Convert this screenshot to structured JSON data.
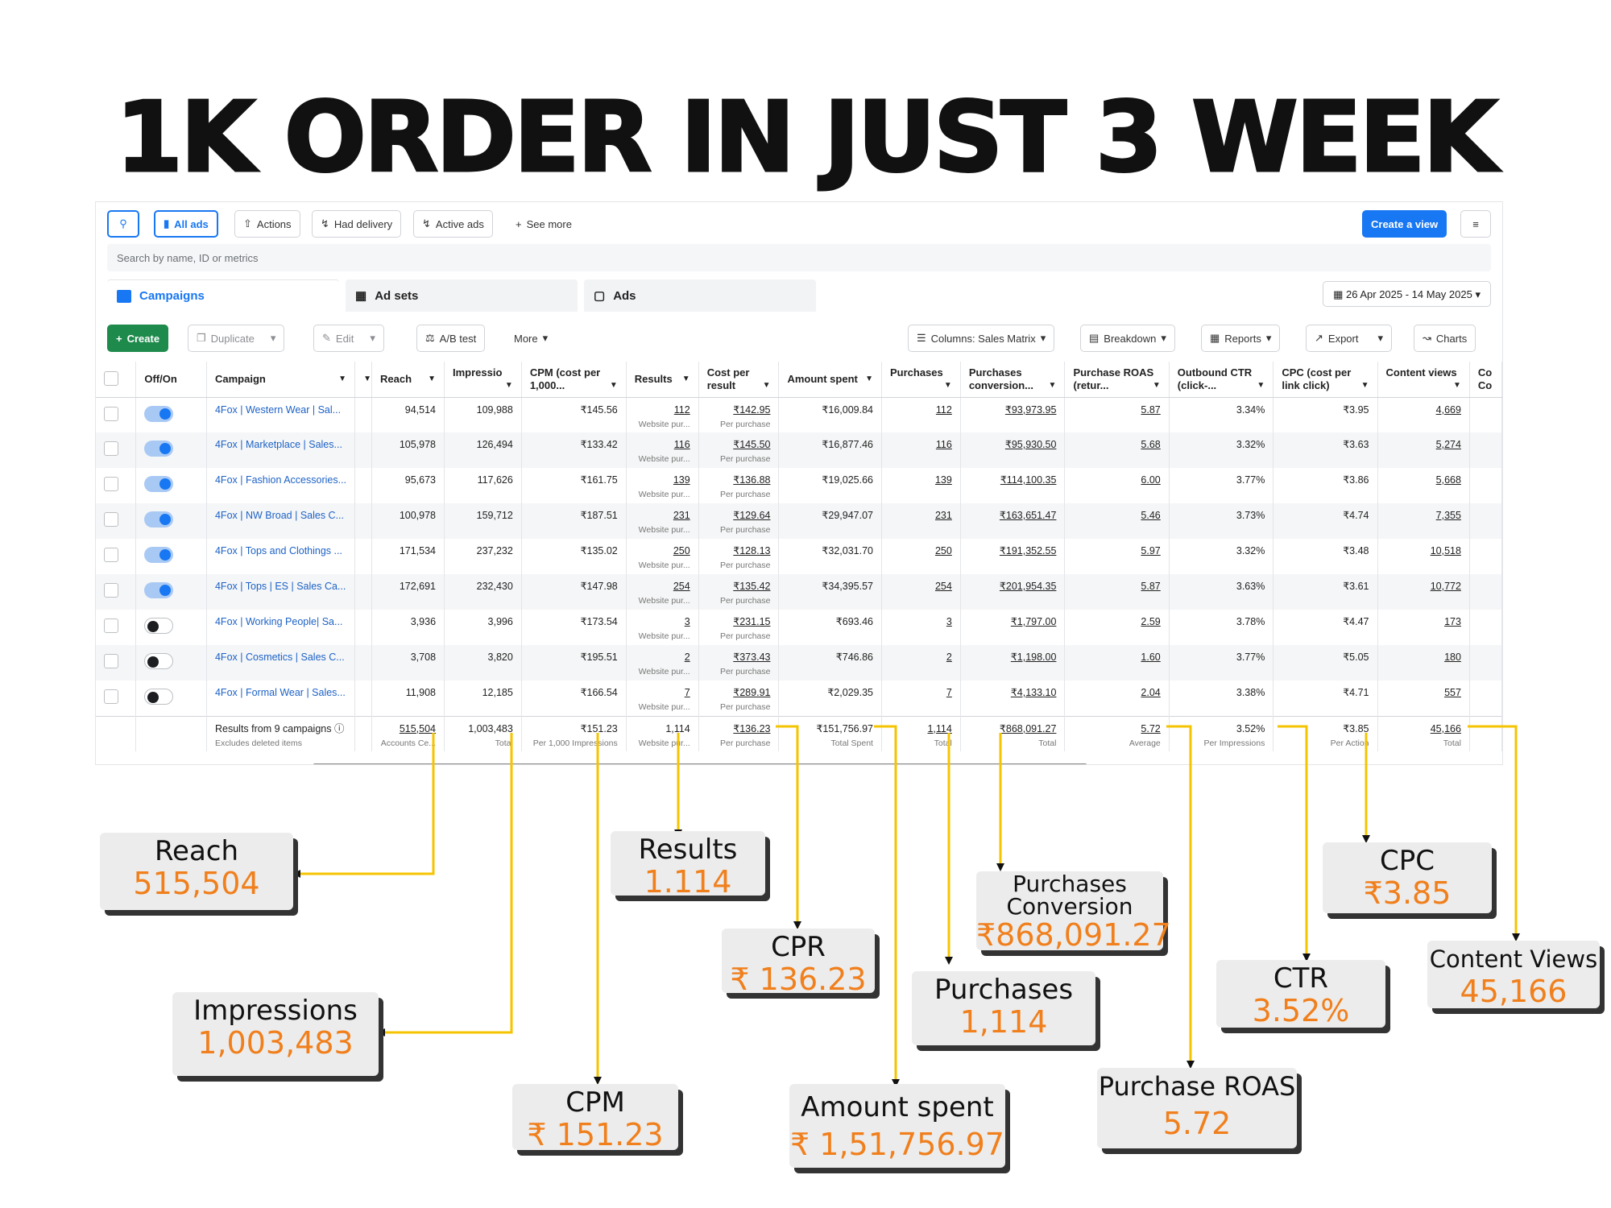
{
  "headline": "1K ORDER IN JUST 3 WEEK",
  "toolbar": {
    "all_ads": "All ads",
    "actions": "Actions",
    "had_delivery": "Had delivery",
    "active_ads": "Active ads",
    "see_more": "See more",
    "create_view": "Create a view"
  },
  "search": {
    "placeholder": "Search by name, ID or metrics"
  },
  "tabs": {
    "campaigns": "Campaigns",
    "ad_sets": "Ad sets",
    "ads": "Ads"
  },
  "date_range": "26 Apr 2025 - 14 May 2025",
  "actionbar": {
    "create": "Create",
    "duplicate": "Duplicate",
    "edit": "Edit",
    "ab_test": "A/B test",
    "more": "More",
    "columns": "Columns: Sales Matrix",
    "breakdown": "Breakdown",
    "reports": "Reports",
    "export": "Export",
    "charts": "Charts"
  },
  "columns": {
    "offon": "Off/On",
    "campaign": "Campaign",
    "reach": "Reach",
    "impressions": "Impressio",
    "cpm": "CPM (cost per 1,000...",
    "results": "Results",
    "cost_per_result": "Cost per result",
    "amount_spent": "Amount spent",
    "purchases": "Purchases",
    "purchases_conversion": "Purchases conversion...",
    "purchase_roas": "Purchase ROAS (retur...",
    "outbound_ctr": "Outbound CTR (click-...",
    "cpc": "CPC (cost per link click)",
    "content_views": "Content views",
    "next": "Co Co"
  },
  "rows": [
    {
      "on": true,
      "name": "4Fox | Western Wear | Sal...",
      "reach": "94,514",
      "impressions": "109,988",
      "cpm": "₹145.56",
      "results": "112",
      "results_sub": "Website pur...",
      "cpr": "₹142.95",
      "cpr_sub": "Per purchase",
      "spent": "₹16,009.84",
      "purchases": "112",
      "conv": "₹93,973.95",
      "roas": "5.87",
      "ctr": "3.34%",
      "cpc": "₹3.95",
      "views": "4,669"
    },
    {
      "on": true,
      "name": "4Fox | Marketplace | Sales...",
      "reach": "105,978",
      "impressions": "126,494",
      "cpm": "₹133.42",
      "results": "116",
      "results_sub": "Website pur...",
      "cpr": "₹145.50",
      "cpr_sub": "Per purchase",
      "spent": "₹16,877.46",
      "purchases": "116",
      "conv": "₹95,930.50",
      "roas": "5.68",
      "ctr": "3.32%",
      "cpc": "₹3.63",
      "views": "5,274"
    },
    {
      "on": true,
      "name": "4Fox | Fashion Accessories...",
      "reach": "95,673",
      "impressions": "117,626",
      "cpm": "₹161.75",
      "results": "139",
      "results_sub": "Website pur...",
      "cpr": "₹136.88",
      "cpr_sub": "Per purchase",
      "spent": "₹19,025.66",
      "purchases": "139",
      "conv": "₹114,100.35",
      "roas": "6.00",
      "ctr": "3.77%",
      "cpc": "₹3.86",
      "views": "5,668"
    },
    {
      "on": true,
      "name": "4Fox | NW Broad | Sales C...",
      "reach": "100,978",
      "impressions": "159,712",
      "cpm": "₹187.51",
      "results": "231",
      "results_sub": "Website pur...",
      "cpr": "₹129.64",
      "cpr_sub": "Per purchase",
      "spent": "₹29,947.07",
      "purchases": "231",
      "conv": "₹163,651.47",
      "roas": "5.46",
      "ctr": "3.73%",
      "cpc": "₹4.74",
      "views": "7,355"
    },
    {
      "on": true,
      "name": "4Fox | Tops and Clothings ...",
      "reach": "171,534",
      "impressions": "237,232",
      "cpm": "₹135.02",
      "results": "250",
      "results_sub": "Website pur...",
      "cpr": "₹128.13",
      "cpr_sub": "Per purchase",
      "spent": "₹32,031.70",
      "purchases": "250",
      "conv": "₹191,352.55",
      "roas": "5.97",
      "ctr": "3.32%",
      "cpc": "₹3.48",
      "views": "10,518"
    },
    {
      "on": true,
      "name": "4Fox | Tops | ES | Sales Ca...",
      "reach": "172,691",
      "impressions": "232,430",
      "cpm": "₹147.98",
      "results": "254",
      "results_sub": "Website pur...",
      "cpr": "₹135.42",
      "cpr_sub": "Per purchase",
      "spent": "₹34,395.57",
      "purchases": "254",
      "conv": "₹201,954.35",
      "roas": "5.87",
      "ctr": "3.63%",
      "cpc": "₹3.61",
      "views": "10,772"
    },
    {
      "on": false,
      "name": "4Fox | Working People| Sa...",
      "reach": "3,936",
      "impressions": "3,996",
      "cpm": "₹173.54",
      "results": "3",
      "results_sub": "Website pur...",
      "cpr": "₹231.15",
      "cpr_sub": "Per purchase",
      "spent": "₹693.46",
      "purchases": "3",
      "conv": "₹1,797.00",
      "roas": "2.59",
      "ctr": "3.78%",
      "cpc": "₹4.47",
      "views": "173"
    },
    {
      "on": false,
      "name": "4Fox | Cosmetics | Sales C...",
      "reach": "3,708",
      "impressions": "3,820",
      "cpm": "₹195.51",
      "results": "2",
      "results_sub": "Website pur...",
      "cpr": "₹373.43",
      "cpr_sub": "Per purchase",
      "spent": "₹746.86",
      "purchases": "2",
      "conv": "₹1,198.00",
      "roas": "1.60",
      "ctr": "3.77%",
      "cpc": "₹5.05",
      "views": "180"
    },
    {
      "on": false,
      "name": "4Fox | Formal Wear | Sales...",
      "reach": "11,908",
      "impressions": "12,185",
      "cpm": "₹166.54",
      "results": "7",
      "results_sub": "Website pur...",
      "cpr": "₹289.91",
      "cpr_sub": "Per purchase",
      "spent": "₹2,029.35",
      "purchases": "7",
      "conv": "₹4,133.10",
      "roas": "2.04",
      "ctr": "3.38%",
      "cpc": "₹4.71",
      "views": "557"
    }
  ],
  "totals": {
    "label": "Results from 9 campaigns",
    "sub": "Excludes deleted items",
    "reach": "515,504",
    "reach_sub": "Accounts Ce...",
    "impressions": "1,003,483",
    "impressions_sub": "Total",
    "cpm": "₹151.23",
    "cpm_sub": "Per 1,000 Impressions",
    "results": "1,114",
    "results_sub": "Website pur...",
    "cpr": "₹136.23",
    "cpr_sub": "Per purchase",
    "spent": "₹151,756.97",
    "spent_sub": "Total Spent",
    "purchases": "1,114",
    "purchases_sub": "Total",
    "conv": "₹868,091.27",
    "conv_sub": "Total",
    "roas": "5.72",
    "roas_sub": "Average",
    "ctr": "3.52%",
    "ctr_sub": "Per Impressions",
    "cpc": "₹3.85",
    "cpc_sub": "Per Action",
    "views": "45,166",
    "views_sub": "Total"
  },
  "callouts": {
    "reach": {
      "label": "Reach",
      "value": "515,504"
    },
    "impressions": {
      "label": "Impressions",
      "value": "1,003,483"
    },
    "cpm": {
      "label": "CPM",
      "value": "₹ 151.23"
    },
    "results": {
      "label": "Results",
      "value": "1.114"
    },
    "cpr": {
      "label": "CPR",
      "value": "₹ 136.23"
    },
    "amount_spent": {
      "label": "Amount spent",
      "value": "₹ 1,51,756.97"
    },
    "purchases": {
      "label": "Purchases",
      "value": "1,114"
    },
    "purchases_conversion": {
      "label": "Purchases Conversion",
      "value": "₹868,091.27"
    },
    "purchase_roas": {
      "label": "Purchase ROAS",
      "value": "5.72"
    },
    "ctr": {
      "label": "CTR",
      "value": "3.52%"
    },
    "cpc": {
      "label": "CPC",
      "value": "₹3.85"
    },
    "content_views": {
      "label": "Content Views",
      "value": "45,166"
    }
  },
  "colors": {
    "accent": "#1877f2",
    "connector": "#f5c400",
    "highlight": "#f07f1c",
    "create_green": "#1e8a4c"
  }
}
